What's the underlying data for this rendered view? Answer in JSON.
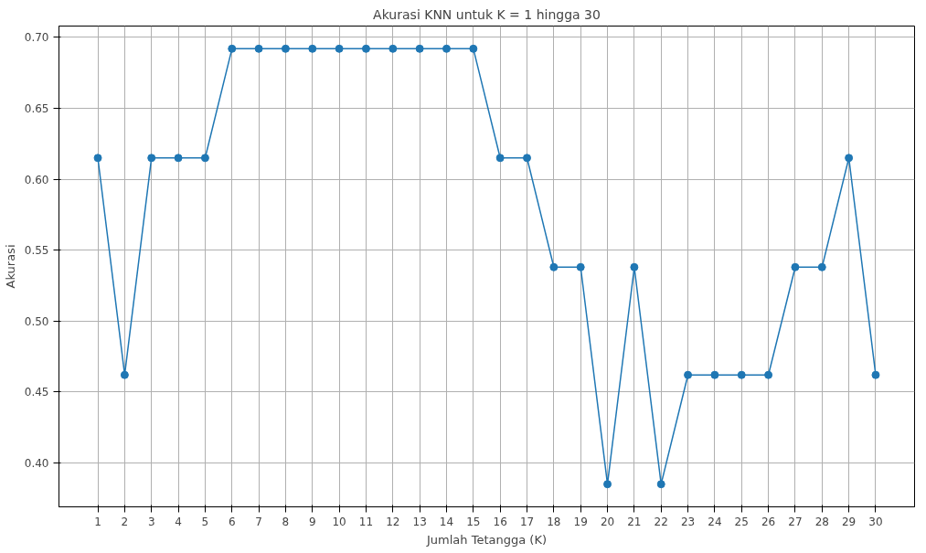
{
  "chart_data": {
    "type": "line",
    "title": "Akurasi KNN untuk K = 1 hingga 30",
    "xlabel": "Jumlah Tetangga (K)",
    "ylabel": "Akurasi",
    "x": [
      1,
      2,
      3,
      4,
      5,
      6,
      7,
      8,
      9,
      10,
      11,
      12,
      13,
      14,
      15,
      16,
      17,
      18,
      19,
      20,
      21,
      22,
      23,
      24,
      25,
      26,
      27,
      28,
      29,
      30
    ],
    "series": [
      {
        "color": "#1f77b4",
        "values": [
          0.615,
          0.462,
          0.615,
          0.615,
          0.615,
          0.692,
          0.692,
          0.692,
          0.692,
          0.692,
          0.692,
          0.692,
          0.692,
          0.692,
          0.692,
          0.615,
          0.615,
          0.538,
          0.538,
          0.385,
          0.538,
          0.385,
          0.462,
          0.462,
          0.462,
          0.462,
          0.538,
          0.538,
          0.615,
          0.462
        ]
      }
    ],
    "xlim": [
      -0.45,
      31.45
    ],
    "ylim": [
      0.369,
      0.708
    ],
    "xticks": [
      1,
      2,
      3,
      4,
      5,
      6,
      7,
      8,
      9,
      10,
      11,
      12,
      13,
      14,
      15,
      16,
      17,
      18,
      19,
      20,
      21,
      22,
      23,
      24,
      25,
      26,
      27,
      28,
      29,
      30
    ],
    "yticks": [
      {
        "value": 0.4,
        "label": "0.40"
      },
      {
        "value": 0.45,
        "label": "0.45"
      },
      {
        "value": 0.5,
        "label": "0.50"
      },
      {
        "value": 0.55,
        "label": "0.55"
      },
      {
        "value": 0.6,
        "label": "0.60"
      },
      {
        "value": 0.65,
        "label": "0.65"
      },
      {
        "value": 0.7,
        "label": "0.70"
      }
    ],
    "grid": true,
    "marker": "circle",
    "line_style": "solid"
  }
}
